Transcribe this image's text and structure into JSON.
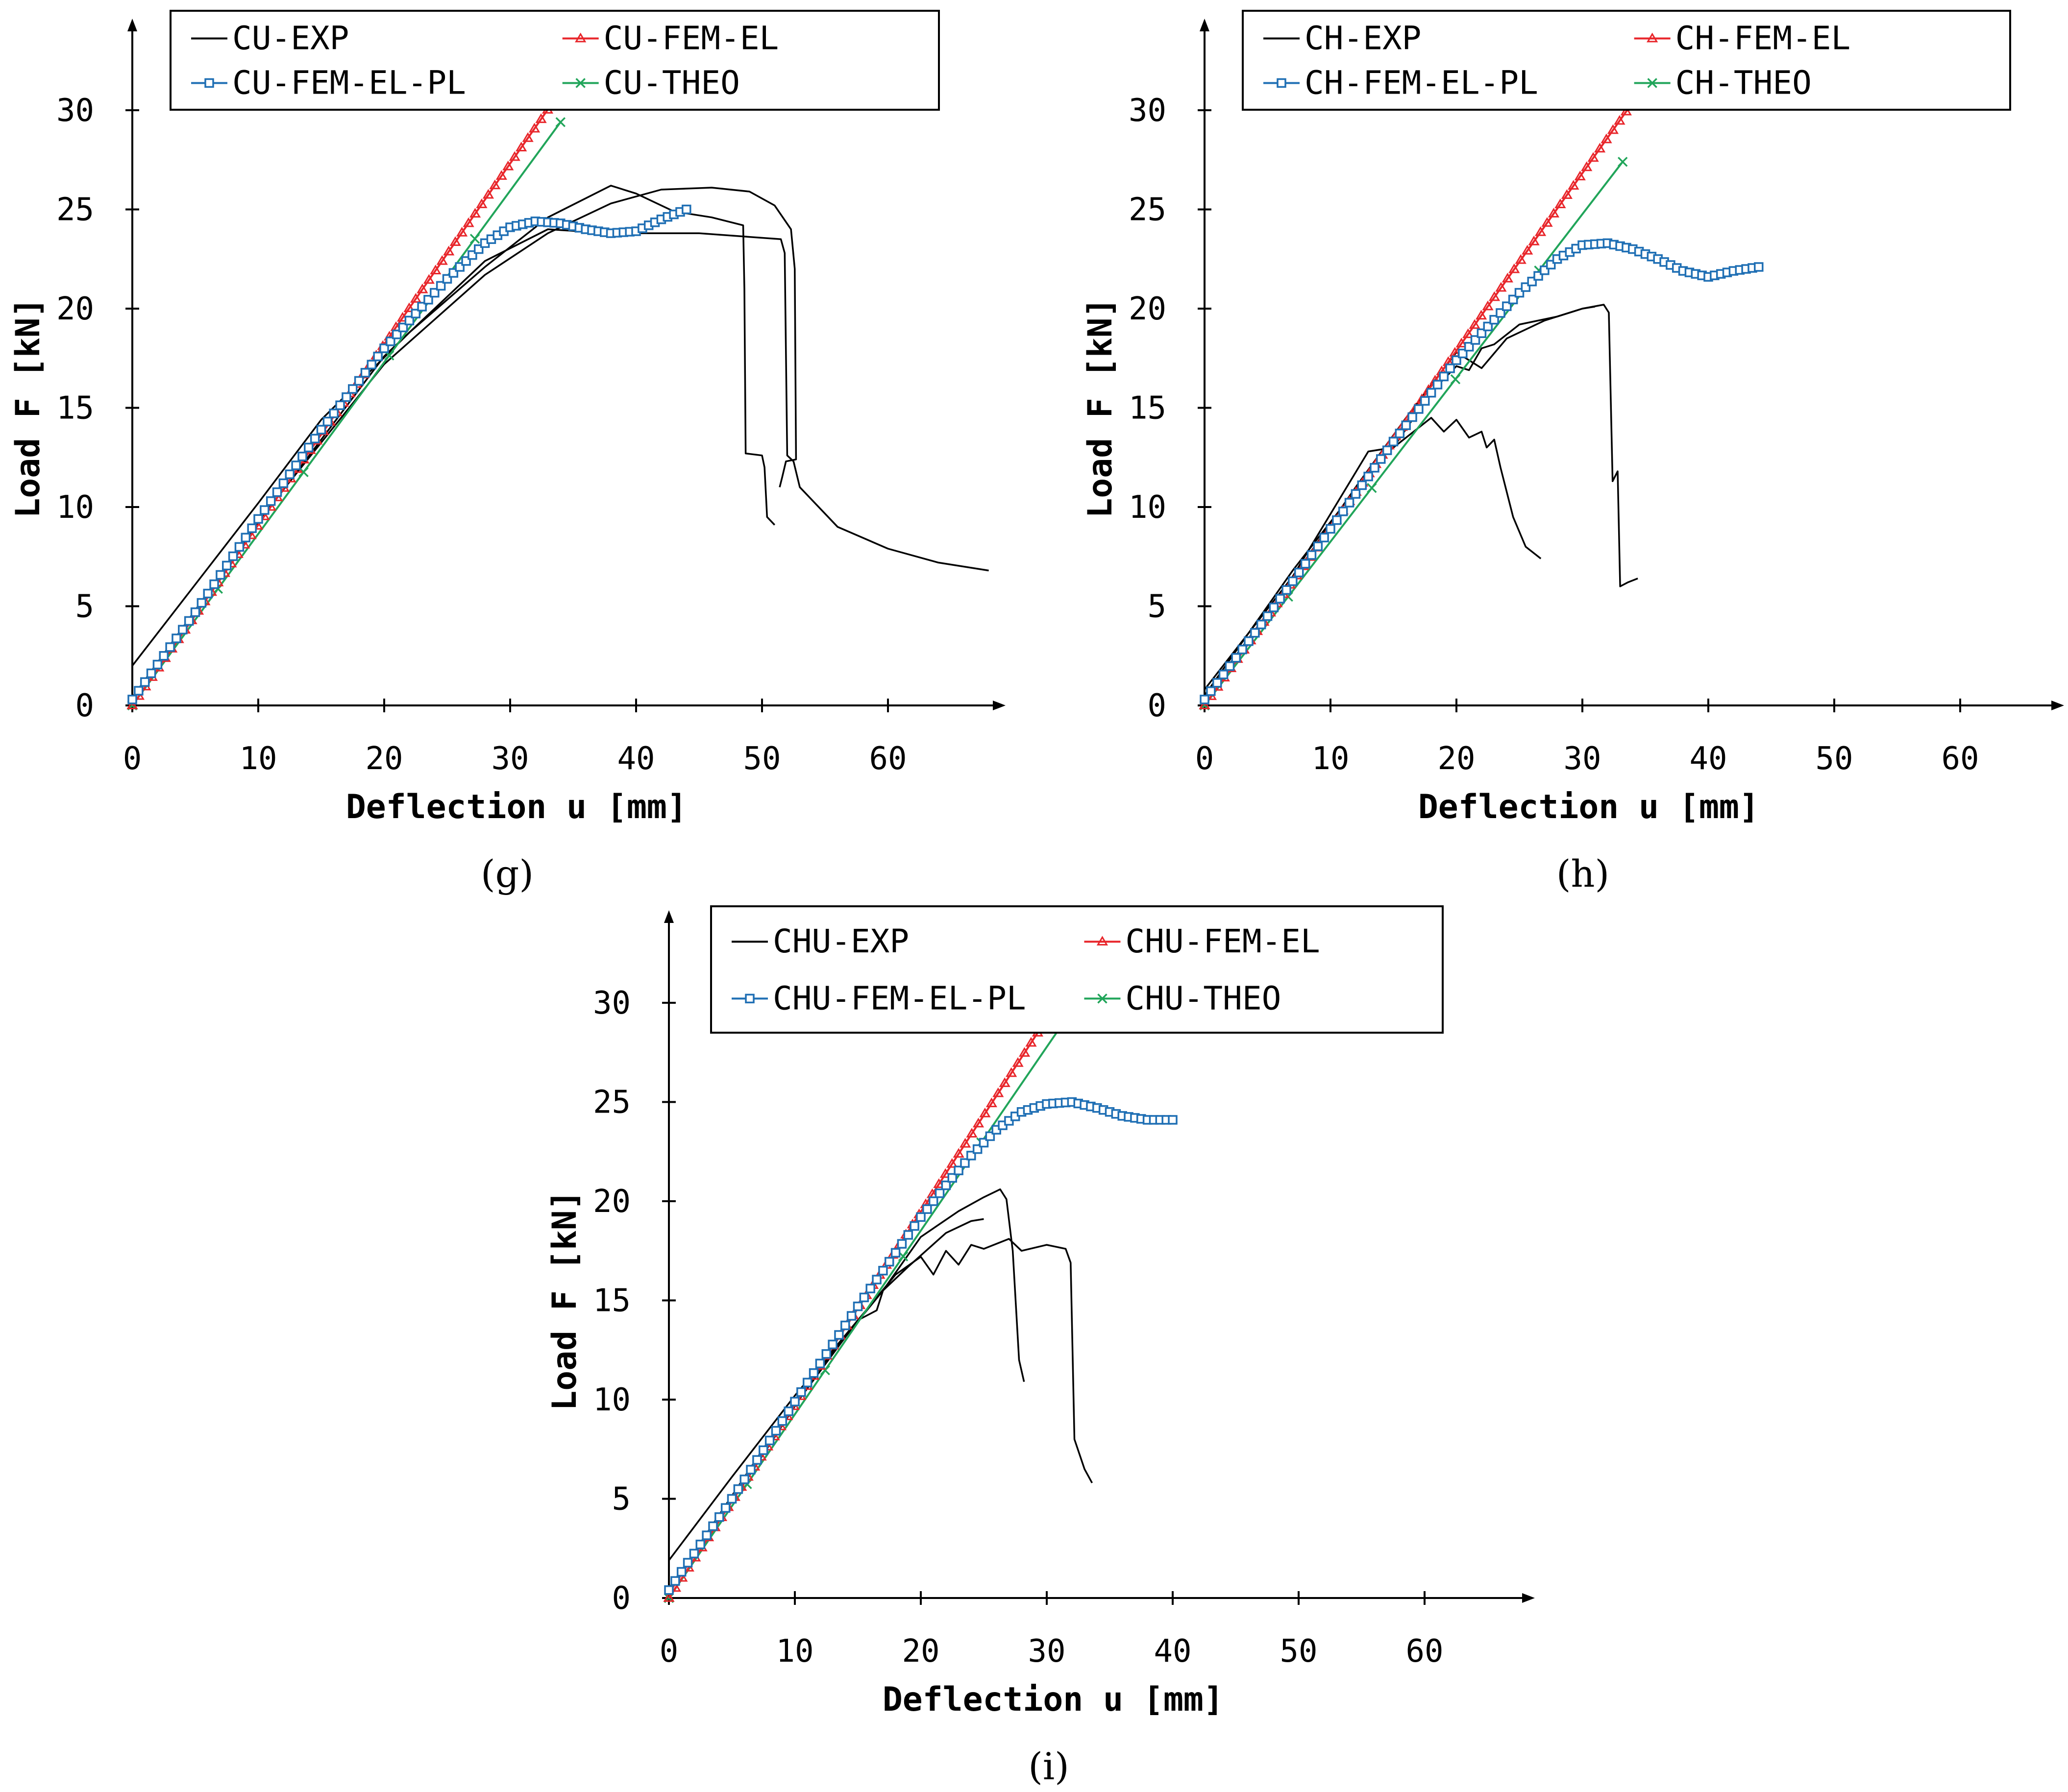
{
  "chart_data": [
    {
      "type": "line",
      "panel_label": "(g)",
      "panel_letter": "g",
      "xlabel": "Deflection u [mm]",
      "ylabel": "Load F [kN]",
      "xlim": [
        0,
        68
      ],
      "ylim": [
        0,
        33.5
      ],
      "xticks": [
        "0",
        "10",
        "20",
        "30",
        "40",
        "50",
        "60"
      ],
      "yticks": [
        "0",
        "5",
        "10",
        "15",
        "20",
        "25",
        "30"
      ],
      "legend": [
        "CU-EXP",
        "CU-FEM-EL",
        "CU-FEM-EL-PL",
        "CU-THEO"
      ],
      "series": [
        {
          "name": "CU-EXP",
          "kind": "exp",
          "color": "#000000",
          "paths": [
            [
              [
                0,
                2.0
              ],
              [
                10,
                10.2
              ],
              [
                15,
                14.4
              ],
              [
                22,
                18.8
              ],
              [
                28,
                22.1
              ],
              [
                33,
                24.6
              ],
              [
                38,
                26.2
              ],
              [
                40,
                25.8
              ],
              [
                43,
                24.9
              ],
              [
                46,
                24.6
              ],
              [
                48.5,
                24.2
              ],
              [
                48.6,
                21.0
              ],
              [
                48.7,
                12.7
              ],
              [
                50,
                12.6
              ],
              [
                50.2,
                12.0
              ],
              [
                50.4,
                9.5
              ],
              [
                51,
                9.1
              ]
            ],
            [
              [
                0,
                0.4
              ],
              [
                10,
                9.2
              ],
              [
                20,
                17.6
              ],
              [
                28,
                22.4
              ],
              [
                33,
                24.0
              ],
              [
                38,
                23.8
              ],
              [
                45,
                23.8
              ],
              [
                51.5,
                23.5
              ],
              [
                51.8,
                22.8
              ],
              [
                52,
                12.6
              ],
              [
                52.5,
                12.3
              ],
              [
                53,
                11.0
              ],
              [
                56,
                9.0
              ],
              [
                60,
                7.9
              ],
              [
                64,
                7.2
              ],
              [
                68,
                6.8
              ]
            ],
            [
              [
                0,
                0.3
              ],
              [
                10,
                9.3
              ],
              [
                20,
                17.2
              ],
              [
                28,
                21.7
              ],
              [
                33,
                23.8
              ],
              [
                38,
                25.3
              ],
              [
                42,
                26.0
              ],
              [
                46,
                26.1
              ],
              [
                49,
                25.9
              ],
              [
                51,
                25.2
              ],
              [
                52.3,
                24.0
              ],
              [
                52.6,
                22.0
              ],
              [
                52.7,
                12.4
              ],
              [
                51.9,
                12.3
              ],
              [
                51.6,
                11.5
              ],
              [
                51.4,
                11.0
              ]
            ]
          ]
        },
        {
          "name": "CU-FEM-EL",
          "kind": "fem-el",
          "color": "#e8262b",
          "x": [
            0,
            33.5
          ],
          "y": [
            0,
            30.5
          ]
        },
        {
          "name": "CU-FEM-EL-PL",
          "kind": "fem-el-pl",
          "color": "#1f6fb4",
          "x": [
            0,
            5,
            10,
            15,
            20,
            25,
            28,
            30,
            32,
            34,
            36,
            38,
            40,
            42,
            44
          ],
          "y": [
            0.3,
            4.7,
            9.4,
            13.9,
            18.0,
            21.5,
            23.3,
            24.1,
            24.4,
            24.3,
            24.0,
            23.8,
            23.9,
            24.5,
            25.0
          ]
        },
        {
          "name": "CU-THEO",
          "kind": "theo",
          "color": "#21a55a",
          "x": [
            0,
            34
          ],
          "y": [
            0,
            29.4
          ]
        }
      ]
    },
    {
      "type": "line",
      "panel_label": "(h)",
      "panel_letter": "h",
      "xlabel": "Deflection u [mm]",
      "ylabel": "Load F [kN]",
      "xlim": [
        0,
        67
      ],
      "ylim": [
        0,
        33.5
      ],
      "xticks": [
        "0",
        "10",
        "20",
        "30",
        "40",
        "50",
        "60"
      ],
      "yticks": [
        "0",
        "5",
        "10",
        "15",
        "20",
        "25",
        "30"
      ],
      "legend": [
        "CH-EXP",
        "CH-FEM-EL",
        "CH-FEM-EL-PL",
        "CH-THEO"
      ],
      "series": [
        {
          "name": "CH-EXP",
          "kind": "exp",
          "color": "#000000",
          "paths": [
            [
              [
                0,
                0.8
              ],
              [
                7,
                6.5
              ],
              [
                13,
                12.8
              ],
              [
                15,
                13.0
              ],
              [
                18,
                15.8
              ],
              [
                20,
                17.1
              ],
              [
                21,
                16.9
              ],
              [
                22,
                18.0
              ],
              [
                23,
                18.2
              ],
              [
                25,
                19.2
              ],
              [
                28,
                19.6
              ],
              [
                30,
                20.0
              ],
              [
                31.7,
                20.2
              ],
              [
                32.1,
                19.8
              ],
              [
                32.4,
                11.3
              ],
              [
                32.8,
                11.8
              ],
              [
                33,
                6.0
              ],
              [
                33.6,
                6.2
              ],
              [
                34.4,
                6.4
              ]
            ],
            [
              [
                0,
                0.5
              ],
              [
                7,
                6.8
              ],
              [
                14,
                12.5
              ],
              [
                18,
                14.5
              ],
              [
                19,
                13.8
              ],
              [
                20,
                14.4
              ],
              [
                21,
                13.5
              ],
              [
                22,
                13.8
              ],
              [
                22.4,
                13.0
              ],
              [
                23,
                13.4
              ],
              [
                23.5,
                12.0
              ],
              [
                24.5,
                9.5
              ],
              [
                25.5,
                8.0
              ],
              [
                26.7,
                7.4
              ]
            ],
            [
              [
                0,
                0.4
              ],
              [
                6,
                5.5
              ],
              [
                12,
                11.0
              ],
              [
                16,
                14.5
              ],
              [
                20,
                17.8
              ],
              [
                22,
                17.0
              ],
              [
                24,
                18.5
              ],
              [
                27,
                19.4
              ],
              [
                30,
                20.0
              ],
              [
                31,
                20.1
              ]
            ]
          ]
        },
        {
          "name": "CH-FEM-EL",
          "kind": "fem-el",
          "color": "#e8262b",
          "x": [
            0,
            34
          ],
          "y": [
            0,
            30.4
          ]
        },
        {
          "name": "CH-FEM-EL-PL",
          "kind": "fem-el-pl",
          "color": "#1f6fb4",
          "x": [
            0,
            5,
            10,
            15,
            20,
            25,
            28,
            30,
            32,
            34,
            36,
            38,
            40,
            42,
            44
          ],
          "y": [
            0.3,
            4.5,
            8.9,
            13.3,
            17.4,
            20.8,
            22.5,
            23.2,
            23.3,
            23.0,
            22.5,
            21.9,
            21.6,
            21.9,
            22.1
          ]
        },
        {
          "name": "CH-THEO",
          "kind": "theo",
          "color": "#21a55a",
          "x": [
            0,
            33.2
          ],
          "y": [
            0,
            27.4
          ]
        }
      ]
    },
    {
      "type": "line",
      "panel_label": "(i)",
      "panel_letter": "i",
      "xlabel": "Deflection u [mm]",
      "ylabel": "Load F [kN]",
      "xlim": [
        0,
        67
      ],
      "ylim": [
        0,
        33.5
      ],
      "xticks": [
        "0",
        "10",
        "20",
        "30",
        "40",
        "50",
        "60"
      ],
      "yticks": [
        "0",
        "5",
        "10",
        "15",
        "20",
        "25",
        "30"
      ],
      "legend": [
        "CHU-EXP",
        "CHU-FEM-EL",
        "CHU-FEM-EL-PL",
        "CHU-THEO"
      ],
      "series": [
        {
          "name": "CHU-EXP",
          "kind": "exp",
          "color": "#000000",
          "paths": [
            [
              [
                0,
                1.9
              ],
              [
                5,
                6.1
              ],
              [
                10,
                10.2
              ],
              [
                15,
                14.0
              ],
              [
                18,
                16.3
              ],
              [
                20,
                17.2
              ],
              [
                21,
                16.3
              ],
              [
                22,
                17.5
              ],
              [
                23,
                16.8
              ],
              [
                24,
                17.8
              ],
              [
                25,
                17.6
              ],
              [
                27,
                18.1
              ],
              [
                28,
                17.5
              ],
              [
                30,
                17.8
              ],
              [
                31.5,
                17.6
              ],
              [
                31.9,
                16.9
              ],
              [
                32.2,
                8.0
              ],
              [
                33,
                6.5
              ],
              [
                33.6,
                5.8
              ]
            ],
            [
              [
                0,
                0.5
              ],
              [
                6,
                5.8
              ],
              [
                12,
                11.6
              ],
              [
                17,
                15.5
              ],
              [
                20,
                18.2
              ],
              [
                23,
                19.5
              ],
              [
                25,
                20.2
              ],
              [
                26.3,
                20.6
              ],
              [
                26.8,
                20.1
              ],
              [
                27.3,
                17.5
              ],
              [
                27.8,
                12.0
              ],
              [
                28.2,
                10.9
              ]
            ],
            [
              [
                0,
                0.4
              ],
              [
                8,
                8.0
              ],
              [
                15,
                14.0
              ],
              [
                16.5,
                14.5
              ],
              [
                17,
                15.5
              ],
              [
                19,
                16.7
              ],
              [
                22,
                18.4
              ],
              [
                24,
                19.0
              ],
              [
                25,
                19.1
              ]
            ]
          ]
        },
        {
          "name": "CHU-FEM-EL",
          "kind": "fem-el",
          "color": "#e8262b",
          "x": [
            0,
            29.8
          ],
          "y": [
            0,
            29.0
          ]
        },
        {
          "name": "CHU-FEM-EL-PL",
          "kind": "fem-el-pl",
          "color": "#1f6fb4",
          "x": [
            0,
            5,
            10,
            15,
            20,
            22,
            24,
            26,
            28,
            30,
            32,
            34,
            36,
            38,
            40
          ],
          "y": [
            0.4,
            5.0,
            9.9,
            14.7,
            19.2,
            20.8,
            22.3,
            23.6,
            24.5,
            24.9,
            25.0,
            24.7,
            24.3,
            24.1,
            24.1
          ]
        },
        {
          "name": "CHU-THEO",
          "kind": "theo",
          "color": "#21a55a",
          "x": [
            0,
            31
          ],
          "y": [
            0,
            28.7
          ]
        }
      ]
    }
  ]
}
